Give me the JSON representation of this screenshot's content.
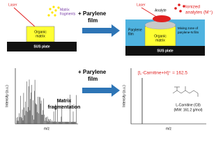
{
  "top_left": {
    "laser": "Laser",
    "matrix_fragments": [
      "Matrix",
      "fragments"
    ],
    "organic_matrix": [
      "Organic",
      "matrix"
    ],
    "plate": "SUS plate"
  },
  "steps": [
    [
      "+ Parylene",
      "film"
    ],
    [
      "+ Parylene",
      "film"
    ]
  ],
  "top_right": {
    "laser": "Laser",
    "analyte": "Analyte",
    "ionized": [
      "Ionized",
      "analytes (M⁺)"
    ],
    "parylene": [
      "Parylene",
      "film"
    ],
    "organic_matrix": [
      "Organic",
      "matrix"
    ],
    "mixing_zone": [
      "Mixing zone of",
      "parylene-N film"
    ],
    "plate": "SUS plate"
  },
  "bottom_left": {
    "y_label": "Intensity (a.u.)",
    "x_label": "m/z",
    "annotation": [
      "Matrix",
      "fragmentation"
    ]
  },
  "bottom_right": {
    "y_label": "Intensity (a.u.)",
    "x_label": "m/z",
    "peak_label": "[L-Carnitine+H]⁺ = 162.5",
    "compound": "L-Carnitine (C8)",
    "mw": "(MW: 161.2 g/mol)"
  }
}
